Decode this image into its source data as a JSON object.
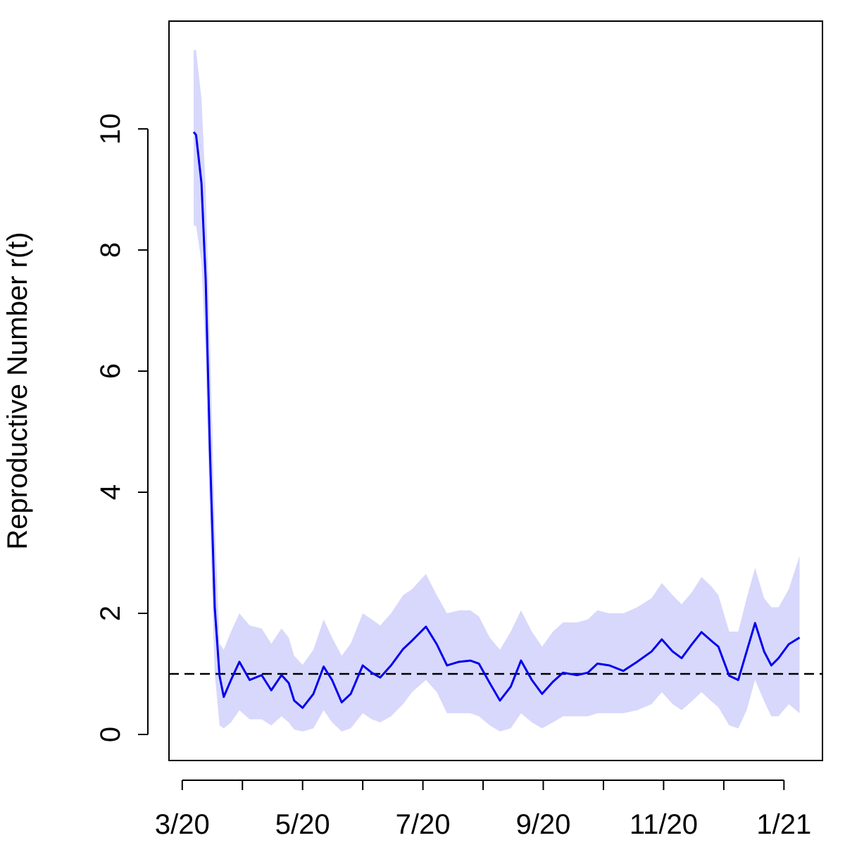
{
  "chart_data": {
    "type": "line",
    "y_label": "Reproductive Number r(t)",
    "x": [
      0.19,
      0.23,
      0.32,
      0.39,
      0.46,
      0.54,
      0.62,
      0.69,
      0.81,
      0.95,
      1.12,
      1.32,
      1.48,
      1.65,
      1.77,
      1.86,
      2.0,
      2.18,
      2.35,
      2.49,
      2.65,
      2.8,
      3.0,
      3.15,
      3.29,
      3.47,
      3.67,
      3.82,
      4.05,
      4.23,
      4.4,
      4.6,
      4.79,
      4.93,
      5.11,
      5.28,
      5.46,
      5.63,
      5.81,
      5.98,
      6.16,
      6.33,
      6.56,
      6.74,
      6.9,
      7.1,
      7.33,
      7.56,
      7.8,
      7.97,
      8.15,
      8.3,
      8.47,
      8.63,
      8.79,
      8.91,
      9.09,
      9.24,
      9.38,
      9.52,
      9.67,
      9.79,
      9.91,
      10.08,
      10.26
    ],
    "series": [
      {
        "color": "#0000ee",
        "values": [
          9.95,
          9.9,
          9.1,
          7.5,
          4.7,
          2.1,
          0.97,
          0.62,
          0.9,
          1.2,
          0.9,
          0.98,
          0.73,
          0.98,
          0.85,
          0.56,
          0.44,
          0.67,
          1.12,
          0.9,
          0.53,
          0.67,
          1.14,
          1.02,
          0.94,
          1.14,
          1.41,
          1.55,
          1.78,
          1.49,
          1.14,
          1.2,
          1.22,
          1.17,
          0.85,
          0.56,
          0.79,
          1.22,
          0.9,
          0.67,
          0.87,
          1.02,
          0.98,
          1.02,
          1.17,
          1.14,
          1.05,
          1.2,
          1.37,
          1.57,
          1.37,
          1.26,
          1.49,
          1.69,
          1.55,
          1.45,
          0.97,
          0.9,
          1.37,
          1.84,
          1.37,
          1.14,
          1.26,
          1.49,
          1.6
        ]
      }
    ],
    "band": {
      "color": "#d8d8fc",
      "upper": [
        11.3,
        11.3,
        10.5,
        9.0,
        6.5,
        3.5,
        1.5,
        1.4,
        1.7,
        2.0,
        1.8,
        1.75,
        1.5,
        1.75,
        1.6,
        1.3,
        1.15,
        1.4,
        1.9,
        1.6,
        1.3,
        1.5,
        2.0,
        1.9,
        1.8,
        2.0,
        2.3,
        2.4,
        2.65,
        2.3,
        2.0,
        2.05,
        2.05,
        1.95,
        1.6,
        1.4,
        1.7,
        2.05,
        1.7,
        1.45,
        1.7,
        1.85,
        1.85,
        1.9,
        2.05,
        2.0,
        2.0,
        2.1,
        2.25,
        2.5,
        2.3,
        2.15,
        2.35,
        2.6,
        2.45,
        2.3,
        1.7,
        1.7,
        2.25,
        2.75,
        2.25,
        2.1,
        2.1,
        2.4,
        2.95
      ],
      "lower": [
        8.4,
        8.4,
        7.8,
        6.2,
        3.5,
        1.0,
        0.15,
        0.1,
        0.2,
        0.4,
        0.25,
        0.25,
        0.15,
        0.3,
        0.2,
        0.08,
        0.05,
        0.1,
        0.4,
        0.2,
        0.05,
        0.1,
        0.35,
        0.25,
        0.2,
        0.3,
        0.5,
        0.7,
        0.9,
        0.7,
        0.35,
        0.35,
        0.35,
        0.3,
        0.15,
        0.05,
        0.1,
        0.35,
        0.2,
        0.1,
        0.2,
        0.3,
        0.3,
        0.3,
        0.35,
        0.35,
        0.35,
        0.4,
        0.5,
        0.7,
        0.5,
        0.4,
        0.55,
        0.7,
        0.55,
        0.45,
        0.15,
        0.1,
        0.4,
        0.9,
        0.55,
        0.3,
        0.3,
        0.5,
        0.35
      ]
    },
    "reference_line": {
      "value": 1,
      "color": "#000000",
      "dashed": true
    },
    "xlim": [
      -0.22,
      10.64
    ],
    "xticks": [
      {
        "value": 0,
        "label": "3/20"
      },
      {
        "value": 1,
        "label": null
      },
      {
        "value": 2,
        "label": "5/20"
      },
      {
        "value": 3,
        "label": null
      },
      {
        "value": 4,
        "label": "7/20"
      },
      {
        "value": 5,
        "label": null
      },
      {
        "value": 6,
        "label": "9/20"
      },
      {
        "value": 7,
        "label": null
      },
      {
        "value": 8,
        "label": "11/20"
      },
      {
        "value": 9,
        "label": null
      },
      {
        "value": 10,
        "label": "1/21"
      }
    ],
    "ylim": [
      -0.43,
      11.78
    ],
    "yticks": [
      0,
      2,
      4,
      6,
      8,
      10
    ],
    "grid": false
  }
}
